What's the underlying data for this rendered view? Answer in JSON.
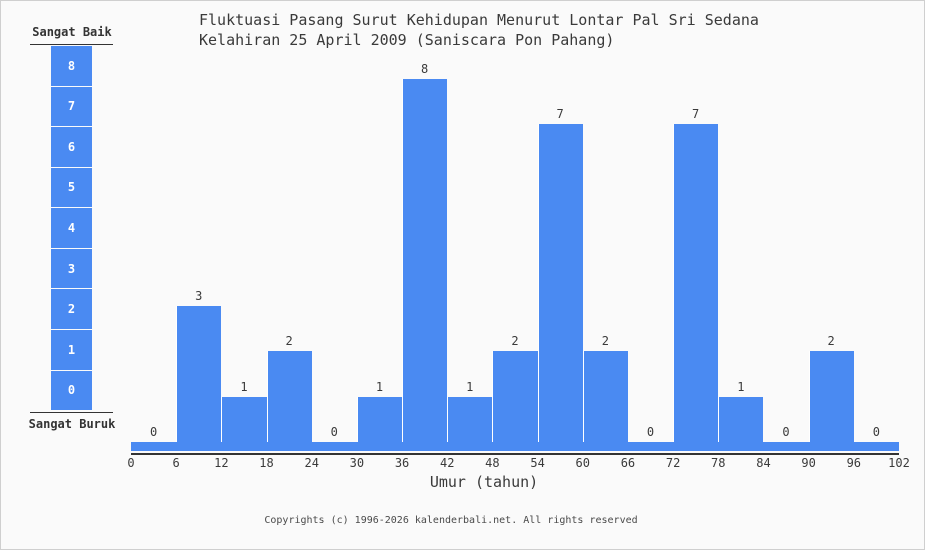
{
  "title": {
    "line1": "Fluktuasi Pasang Surut Kehidupan Menurut Lontar Pal Sri Sedana",
    "line2": "Kelahiran 25 April 2009 (Saniscara Pon Pahang)"
  },
  "legend": {
    "top_label": "Sangat Baik",
    "bottom_label": "Sangat Buruk",
    "scale": [
      8,
      7,
      6,
      5,
      4,
      3,
      2,
      1,
      0
    ]
  },
  "chart_data": {
    "type": "bar",
    "title": "Fluktuasi Pasang Surut Kehidupan Menurut Lontar Pal Sri Sedana Kelahiran 25 April 2009 (Saniscara Pon Pahang)",
    "xlabel": "Umur (tahun)",
    "ylabel": "",
    "x_ticks": [
      0,
      6,
      12,
      18,
      24,
      30,
      36,
      42,
      48,
      54,
      60,
      66,
      72,
      78,
      84,
      90,
      96,
      102
    ],
    "categories": [
      "0-6",
      "6-12",
      "12-18",
      "18-24",
      "24-30",
      "30-36",
      "36-42",
      "42-48",
      "48-54",
      "54-60",
      "60-66",
      "66-72",
      "72-78",
      "78-84",
      "84-90",
      "90-96",
      "96-102"
    ],
    "values": [
      0,
      3,
      1,
      2,
      0,
      1,
      8,
      1,
      2,
      7,
      2,
      0,
      7,
      1,
      0,
      2,
      0
    ],
    "ylim": [
      0,
      8
    ],
    "grid": false,
    "legend_position": "left",
    "scale_max_label": "Sangat Baik",
    "scale_min_label": "Sangat Buruk"
  },
  "xaxis": {
    "label": "Umur (tahun)"
  },
  "footer": {
    "copyright": "Copyrights (c) 1996-2026 kalenderbali.net. All rights reserved"
  },
  "colors": {
    "bar": "#4a8af2",
    "background": "#fafafa",
    "axis": "#333333",
    "text": "#3a3a3a",
    "border": "#cfcfcf",
    "legend_number": "#ffffff"
  }
}
